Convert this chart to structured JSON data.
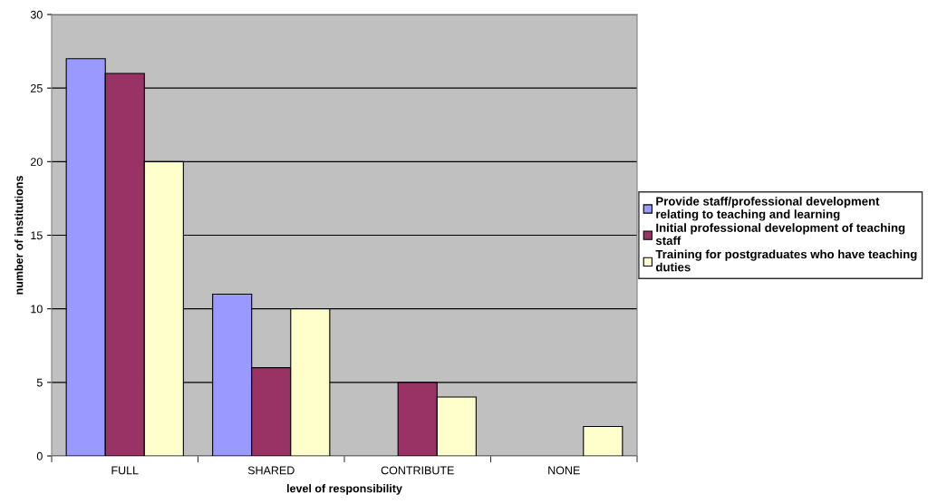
{
  "chart_data": {
    "type": "bar",
    "xlabel": "level of responsibility",
    "ylabel": "number of institutions",
    "categories": [
      "FULL",
      "SHARED",
      "CONTRIBUTE",
      "NONE"
    ],
    "series": [
      {
        "name": "Provide staff/professional development relating to teaching and learning",
        "color": "#9999ff",
        "values": [
          27,
          11,
          null,
          null
        ]
      },
      {
        "name": "Initial professional development of teaching staff",
        "color": "#993366",
        "values": [
          26,
          6,
          5,
          null
        ]
      },
      {
        "name": "Training for postgraduates who have teaching duties",
        "color": "#ffffcc",
        "values": [
          20,
          10,
          4,
          2
        ]
      }
    ],
    "ylim": [
      0,
      30
    ],
    "yticks": [
      0,
      5,
      10,
      15,
      20,
      25,
      30
    ],
    "grid": "y",
    "legend": "right"
  }
}
